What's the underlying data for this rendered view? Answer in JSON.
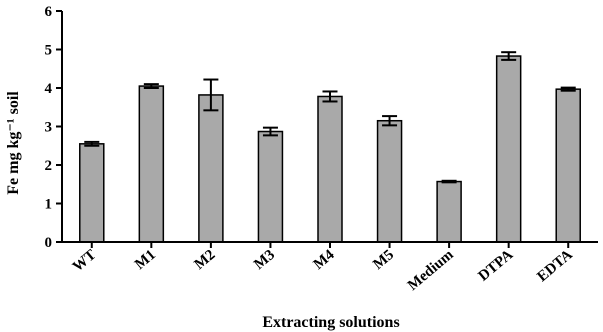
{
  "chart_data": {
    "type": "bar",
    "categories": [
      "WT",
      "M1",
      "M2",
      "M3",
      "M4",
      "M5",
      "Medium",
      "DTPA",
      "EDTA"
    ],
    "values": [
      2.55,
      4.05,
      3.82,
      2.87,
      3.78,
      3.15,
      1.57,
      4.83,
      3.97
    ],
    "errors": [
      0.05,
      0.05,
      0.4,
      0.1,
      0.13,
      0.12,
      0.02,
      0.1,
      0.04
    ],
    "title": "",
    "xlabel": "Extracting solutions",
    "ylabel": "Fe mg kg⁻¹ soil",
    "ylim": [
      0,
      6
    ],
    "yticks": [
      "0",
      "1",
      "2",
      "3",
      "4",
      "5",
      "6"
    ],
    "grid": false,
    "bar_color": "#a9a9a9"
  }
}
